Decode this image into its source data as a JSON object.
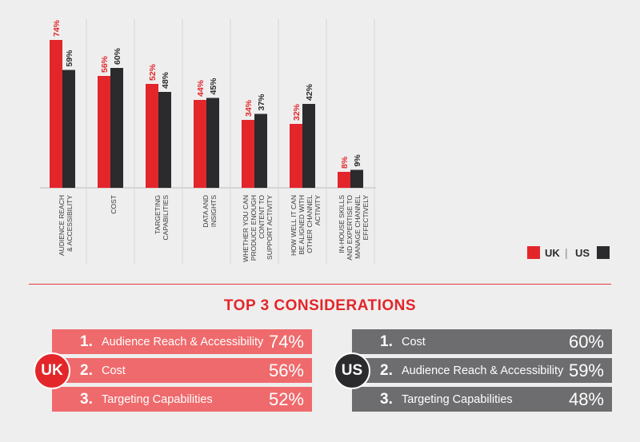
{
  "chart_data": {
    "type": "bar",
    "categories": [
      [
        "AUDIENCE REACH",
        "& ACCESSIBILITY"
      ],
      [
        "COST"
      ],
      [
        "TARGETING",
        "CAPABILITIES"
      ],
      [
        "DATA AND",
        "INSIGHTS"
      ],
      [
        "WHETHER YOU CAN",
        "PRODUCE ENOUGH",
        "CONTENT TO",
        "SUPPORT ACTIVITY"
      ],
      [
        "HOW WELL IT CAN",
        "BE ALIGNED WITH",
        "OTHER CHANNEL",
        "ACTIVITY"
      ],
      [
        "IN-HOUSE SKILLS",
        "AND EXPERTISE TO",
        "MANAGE CHANNEL",
        "EFFECTIVELY"
      ]
    ],
    "series": [
      {
        "name": "UK",
        "color": "#e2262a",
        "values": [
          74,
          56,
          52,
          44,
          34,
          32,
          8
        ],
        "labels": [
          "74%",
          "56%",
          "52%",
          "44%",
          "34%",
          "32%",
          "8%"
        ]
      },
      {
        "name": "US",
        "color": "#2b2a2d",
        "values": [
          59,
          60,
          48,
          45,
          37,
          42,
          9
        ],
        "labels": [
          "59%",
          "60%",
          "48%",
          "45%",
          "37%",
          "42%",
          "9%"
        ]
      }
    ],
    "ylim": [
      0,
      80
    ],
    "legend": "bottom-right",
    "legend_separator": "|",
    "grid": false
  },
  "section": {
    "title": "TOP 3 CONSIDERATIONS"
  },
  "uk": {
    "badge": "UK",
    "items": [
      {
        "rank": "1.",
        "label": "Audience Reach & Accessibility",
        "pct": "74%"
      },
      {
        "rank": "2.",
        "label": "Cost",
        "pct": "56%"
      },
      {
        "rank": "3.",
        "label": "Targeting Capabilities",
        "pct": "52%"
      }
    ]
  },
  "us": {
    "badge": "US",
    "items": [
      {
        "rank": "1.",
        "label": "Cost",
        "pct": "60%"
      },
      {
        "rank": "2.",
        "label": "Audience Reach & Accessibility",
        "pct": "59%"
      },
      {
        "rank": "3.",
        "label": "Targeting Capabilities",
        "pct": "48%"
      }
    ]
  }
}
